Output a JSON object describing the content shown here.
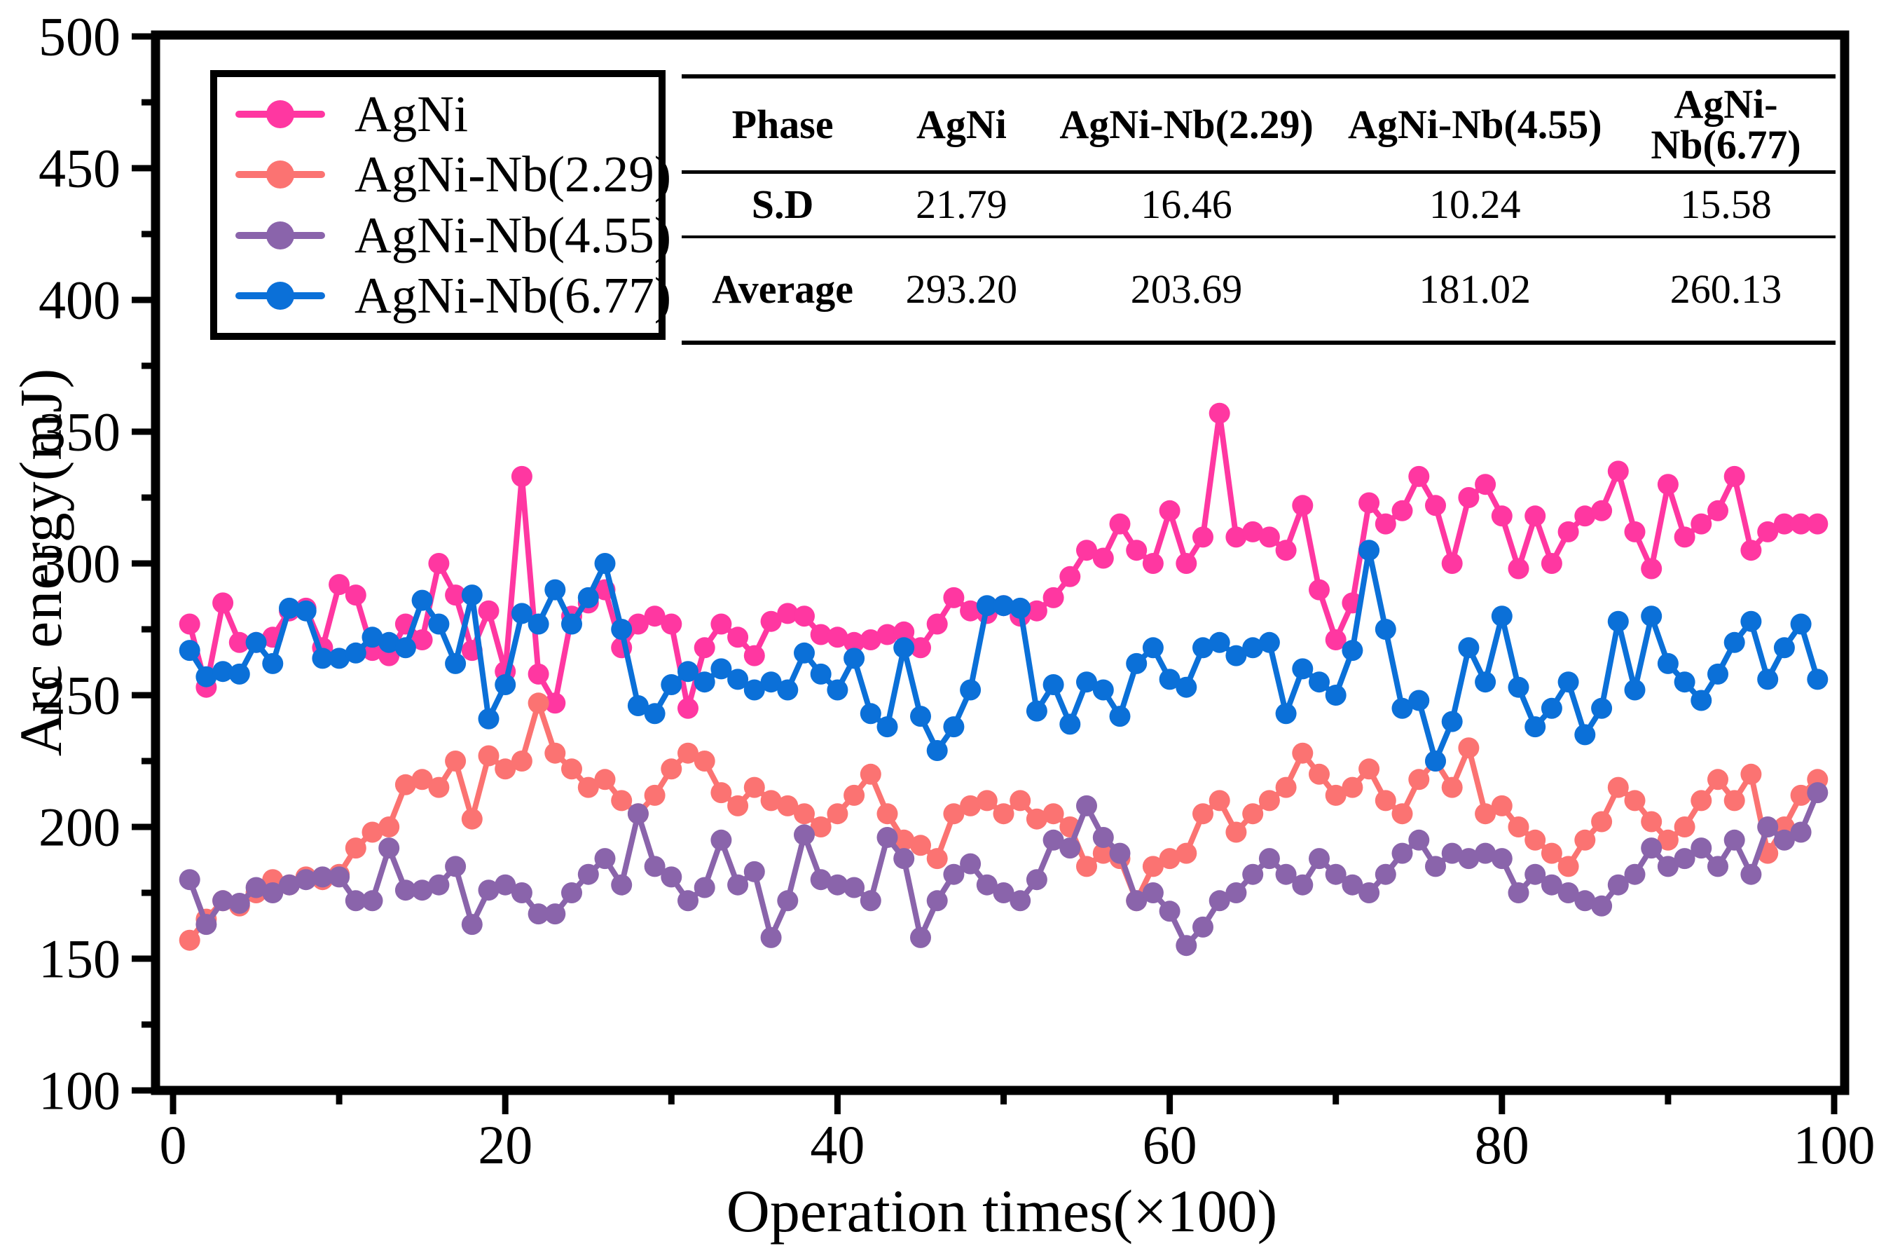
{
  "figure": {
    "background": "#ffffff",
    "axis_color": "#000000"
  },
  "y_axis_title": "Arc energy(mJ)",
  "x_axis_title": "Operation times(×100)",
  "inset_table": {
    "headers": [
      "Phase",
      "AgNi",
      "AgNi-Nb(2.29)",
      "AgNi-Nb(4.55)",
      "AgNi-Nb(6.77)"
    ],
    "rows": [
      {
        "label": "S.D",
        "values": [
          "21.79",
          "16.46",
          "10.24",
          "15.58"
        ]
      },
      {
        "label": "Average",
        "values": [
          "293.20",
          "203.69",
          "181.02",
          "260.13"
        ]
      }
    ]
  },
  "chart_data": {
    "type": "line",
    "title": "",
    "xlabel": "Operation times(×100)",
    "ylabel": "Arc energy(mJ)",
    "xlim": [
      0,
      100
    ],
    "ylim": [
      100,
      500
    ],
    "xticks": [
      0,
      20,
      40,
      60,
      80,
      100
    ],
    "xminorticks": [
      10,
      30,
      50,
      70,
      90
    ],
    "yticks": [
      100,
      150,
      200,
      250,
      300,
      350,
      400,
      450,
      500
    ],
    "yminorticks": [
      125,
      175,
      225,
      275,
      325,
      375,
      425,
      475
    ],
    "grid": false,
    "legend_position": "top-left",
    "x_start": 1,
    "series": [
      {
        "name": "AgNi",
        "color": "#FF37A1",
        "sd": 21.79,
        "average": 293.2,
        "values": [
          277,
          253,
          285,
          270,
          270,
          272,
          282,
          283,
          268,
          292,
          288,
          267,
          265,
          277,
          271,
          300,
          288,
          267,
          282,
          259,
          333,
          258,
          247,
          280,
          285,
          290,
          268,
          277,
          280,
          277,
          245,
          268,
          277,
          272,
          265,
          278,
          281,
          280,
          273,
          272,
          270,
          271,
          273,
          274,
          268,
          277,
          287,
          282,
          281,
          284,
          280,
          282,
          287,
          295,
          305,
          302,
          315,
          305,
          300,
          320,
          300,
          310,
          357,
          310,
          312,
          310,
          305,
          322,
          290,
          271,
          285,
          323,
          315,
          320,
          333,
          322,
          300,
          325,
          330,
          318,
          298,
          318,
          300,
          312,
          318,
          320,
          335,
          312,
          298,
          330,
          310,
          315,
          320,
          333,
          305,
          312,
          315,
          315,
          315
        ]
      },
      {
        "name": "AgNi-Nb(2.29)",
        "color": "#FB7372",
        "sd": 16.46,
        "average": 203.69,
        "values": [
          157,
          165,
          172,
          170,
          175,
          180,
          178,
          181,
          180,
          182,
          192,
          198,
          200,
          216,
          218,
          215,
          225,
          203,
          227,
          222,
          225,
          247,
          228,
          222,
          215,
          218,
          210,
          205,
          212,
          222,
          228,
          225,
          213,
          208,
          215,
          210,
          208,
          205,
          200,
          205,
          212,
          220,
          205,
          195,
          193,
          188,
          205,
          208,
          210,
          205,
          210,
          203,
          205,
          200,
          185,
          190,
          188,
          172,
          185,
          188,
          190,
          205,
          210,
          198,
          205,
          210,
          215,
          228,
          220,
          212,
          215,
          222,
          210,
          205,
          218,
          225,
          215,
          230,
          205,
          208,
          200,
          195,
          190,
          185,
          195,
          202,
          215,
          210,
          202,
          195,
          200,
          210,
          218,
          210,
          220,
          190,
          200,
          212,
          218
        ]
      },
      {
        "name": "AgNi-Nb(4.55)",
        "color": "#8A64AB",
        "sd": 10.24,
        "average": 181.02,
        "values": [
          180,
          163,
          172,
          171,
          177,
          175,
          178,
          180,
          181,
          181,
          172,
          172,
          192,
          176,
          176,
          178,
          185,
          163,
          176,
          178,
          175,
          167,
          167,
          175,
          182,
          188,
          178,
          205,
          185,
          181,
          172,
          177,
          195,
          178,
          183,
          158,
          172,
          197,
          180,
          178,
          177,
          172,
          196,
          188,
          158,
          172,
          182,
          186,
          178,
          175,
          172,
          180,
          195,
          192,
          208,
          196,
          190,
          172,
          175,
          168,
          155,
          162,
          172,
          175,
          182,
          188,
          182,
          178,
          188,
          182,
          178,
          175,
          182,
          190,
          195,
          185,
          190,
          188,
          190,
          188,
          175,
          182,
          178,
          175,
          172,
          170,
          178,
          182,
          192,
          185,
          188,
          192,
          185,
          195,
          182,
          200,
          195,
          198,
          213
        ]
      },
      {
        "name": "AgNi-Nb(6.77)",
        "color": "#0B70D8",
        "sd": 15.58,
        "average": 260.13,
        "values": [
          267,
          257,
          259,
          258,
          270,
          262,
          283,
          282,
          264,
          264,
          266,
          272,
          270,
          268,
          286,
          277,
          262,
          288,
          241,
          254,
          281,
          277,
          290,
          277,
          287,
          300,
          275,
          246,
          243,
          254,
          259,
          255,
          260,
          256,
          252,
          255,
          252,
          266,
          258,
          252,
          264,
          243,
          238,
          268,
          242,
          229,
          238,
          252,
          284,
          284,
          283,
          244,
          254,
          239,
          255,
          252,
          242,
          262,
          268,
          256,
          253,
          268,
          270,
          265,
          268,
          270,
          243,
          260,
          255,
          250,
          267,
          305,
          275,
          245,
          248,
          225,
          240,
          268,
          255,
          280,
          253,
          238,
          245,
          255,
          235,
          245,
          278,
          252,
          280,
          262,
          255,
          248,
          258,
          270,
          278,
          256,
          268,
          277,
          256
        ]
      }
    ]
  }
}
